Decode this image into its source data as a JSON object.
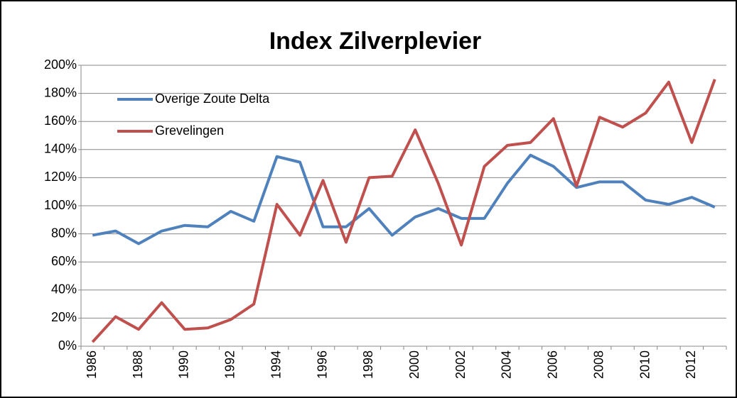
{
  "chart_data": {
    "type": "line",
    "title": "Index Zilverplevier",
    "categories": [
      "1986",
      null,
      "1988",
      null,
      "1990",
      null,
      "1992",
      null,
      "1994",
      null,
      "1996",
      null,
      "1998",
      null,
      "2000",
      null,
      "2002",
      null,
      "2004",
      null,
      "2006",
      null,
      "2008",
      null,
      "2010",
      null,
      "2012",
      null
    ],
    "series": [
      {
        "name": "Overige Zoute Delta",
        "color": "#4f81bd",
        "values": [
          79,
          82,
          73,
          82,
          86,
          85,
          96,
          89,
          135,
          131,
          85,
          85,
          98,
          79,
          92,
          98,
          91,
          91,
          116,
          136,
          128,
          113,
          117,
          117,
          104,
          101,
          106,
          99
        ]
      },
      {
        "name": "Grevelingen",
        "color": "#c0504d",
        "values": [
          3,
          21,
          12,
          31,
          12,
          13,
          19,
          30,
          101,
          79,
          118,
          74,
          120,
          121,
          154,
          116,
          72,
          128,
          143,
          145,
          162,
          114,
          163,
          156,
          166,
          188,
          145,
          190
        ]
      }
    ],
    "ylim": [
      0,
      200
    ],
    "yticks": [
      {
        "value": 0,
        "label": "0%"
      },
      {
        "value": 20,
        "label": "20%"
      },
      {
        "value": 40,
        "label": "40%"
      },
      {
        "value": 60,
        "label": "60%"
      },
      {
        "value": 80,
        "label": "80%"
      },
      {
        "value": 100,
        "label": "100%"
      },
      {
        "value": 120,
        "label": "120%"
      },
      {
        "value": 140,
        "label": "140%"
      },
      {
        "value": 160,
        "label": "160%"
      },
      {
        "value": 180,
        "label": "180%"
      },
      {
        "value": 200,
        "label": "200%"
      }
    ],
    "grid": true,
    "legend": "upper left"
  }
}
